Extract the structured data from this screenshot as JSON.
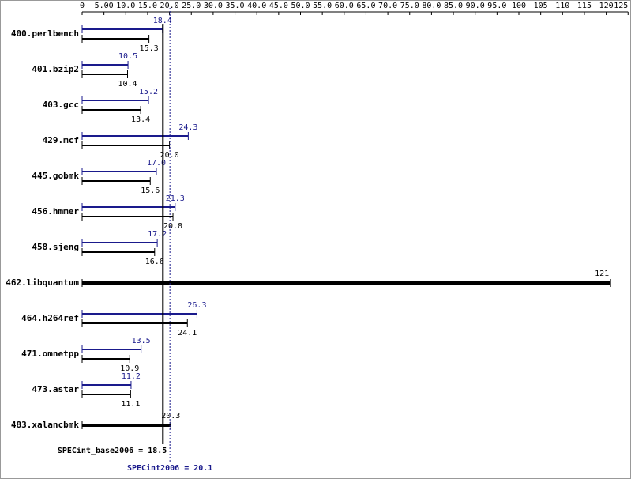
{
  "chart_data": {
    "type": "bar",
    "categories": [
      "400.perlbench",
      "401.bzip2",
      "403.gcc",
      "429.mcf",
      "445.gobmk",
      "456.hmmer",
      "458.sjeng",
      "462.libquantum",
      "464.h264ref",
      "471.omnetpp",
      "473.astar",
      "483.xalancbmk"
    ],
    "series": [
      {
        "color": "#1a1a8c",
        "values": [
          18.4,
          10.5,
          15.2,
          24.3,
          17.0,
          21.3,
          17.2,
          null,
          26.3,
          13.5,
          11.2,
          null
        ],
        "value_labels": [
          "18.4",
          "10.5",
          "15.2",
          "24.3",
          "17.0",
          "21.3",
          "17.2",
          null,
          "26.3",
          "13.5",
          "11.2",
          null
        ]
      },
      {
        "color": "#000000",
        "values": [
          15.3,
          10.4,
          13.4,
          20.0,
          15.6,
          20.8,
          16.6,
          121,
          24.1,
          10.9,
          11.1,
          20.3
        ],
        "value_labels": [
          "15.3",
          "10.4",
          "13.4",
          "20.0",
          "15.6",
          "20.8",
          "16.6",
          "121",
          "24.1",
          "10.9",
          "11.1",
          "20.3"
        ]
      }
    ],
    "xlim": [
      0,
      125
    ],
    "xticks": [
      0,
      {
        "value": 5,
        "label": "5.00"
      },
      {
        "value": 10,
        "label": "10.0"
      },
      {
        "value": 15,
        "label": "15.0"
      },
      {
        "value": 20,
        "label": "20.0"
      },
      {
        "value": 25,
        "label": "25.0"
      },
      {
        "value": 30,
        "label": "30.0"
      },
      {
        "value": 35,
        "label": "35.0"
      },
      {
        "value": 40,
        "label": "40.0"
      },
      {
        "value": 45,
        "label": "45.0"
      },
      {
        "value": 50,
        "label": "50.0"
      },
      {
        "value": 55,
        "label": "55.0"
      },
      {
        "value": 60,
        "label": "60.0"
      },
      {
        "value": 65,
        "label": "65.0"
      },
      {
        "value": 70,
        "label": "70.0"
      },
      {
        "value": 75,
        "label": "75.0"
      },
      {
        "value": 80,
        "label": "80.0"
      },
      {
        "value": 85,
        "label": "85.0"
      },
      {
        "value": 90,
        "label": "90.0"
      },
      {
        "value": 95,
        "label": "95.0"
      },
      100,
      105,
      110,
      115,
      120,
      125
    ],
    "reference_lines": [
      {
        "label": "SPECint_base2006 = 18.5",
        "value": 18.5,
        "color": "#000000",
        "style": "solid"
      },
      {
        "label": "SPECint2006 = 20.1",
        "value": 20.1,
        "color": "#1a1a8c",
        "style": "dotted"
      }
    ]
  }
}
